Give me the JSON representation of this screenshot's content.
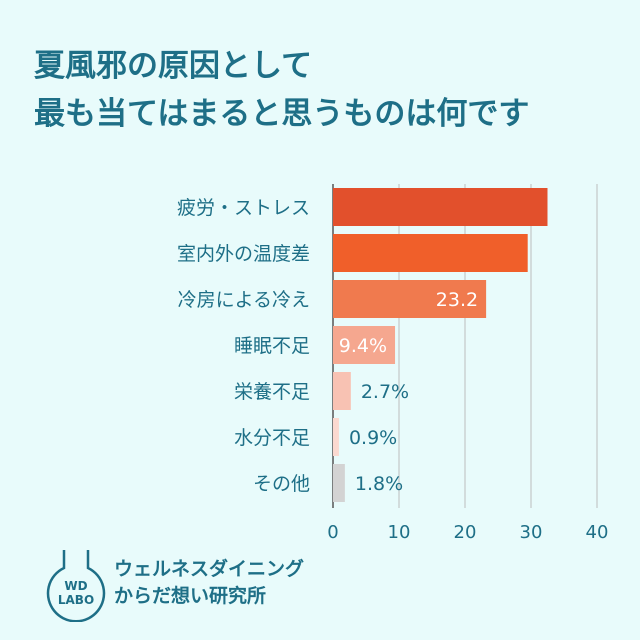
{
  "title": {
    "line1": "夏風邪の原因として",
    "line2": "最も当てはまると思うものは何です"
  },
  "chart_data": {
    "type": "bar",
    "orientation": "horizontal",
    "categories": [
      "疲労・ストレス",
      "室内外の温度差",
      "冷房による冷え",
      "睡眠不足",
      "栄養不足",
      "水分不足",
      "その他"
    ],
    "values": [
      32.5,
      29.5,
      23.2,
      9.4,
      2.7,
      0.9,
      1.8
    ],
    "value_labels": [
      "",
      "",
      "23.2",
      "9.4%",
      "2.7%",
      "0.9%",
      "1.8%"
    ],
    "x_ticks": [
      0,
      10,
      20,
      30,
      40
    ],
    "xlim": [
      0,
      48
    ],
    "grid": true,
    "colors": [
      "#e2502c",
      "#f05f2a",
      "#f07a4e",
      "#f5a78f",
      "#f8c2b3",
      "#fbd9d0",
      "#d3d3d3"
    ]
  },
  "logo": {
    "mark_line1": "WD",
    "mark_line2": "LABO",
    "name_line1": "ウェルネスダイニング",
    "name_line2": "からだ想い研究所"
  }
}
